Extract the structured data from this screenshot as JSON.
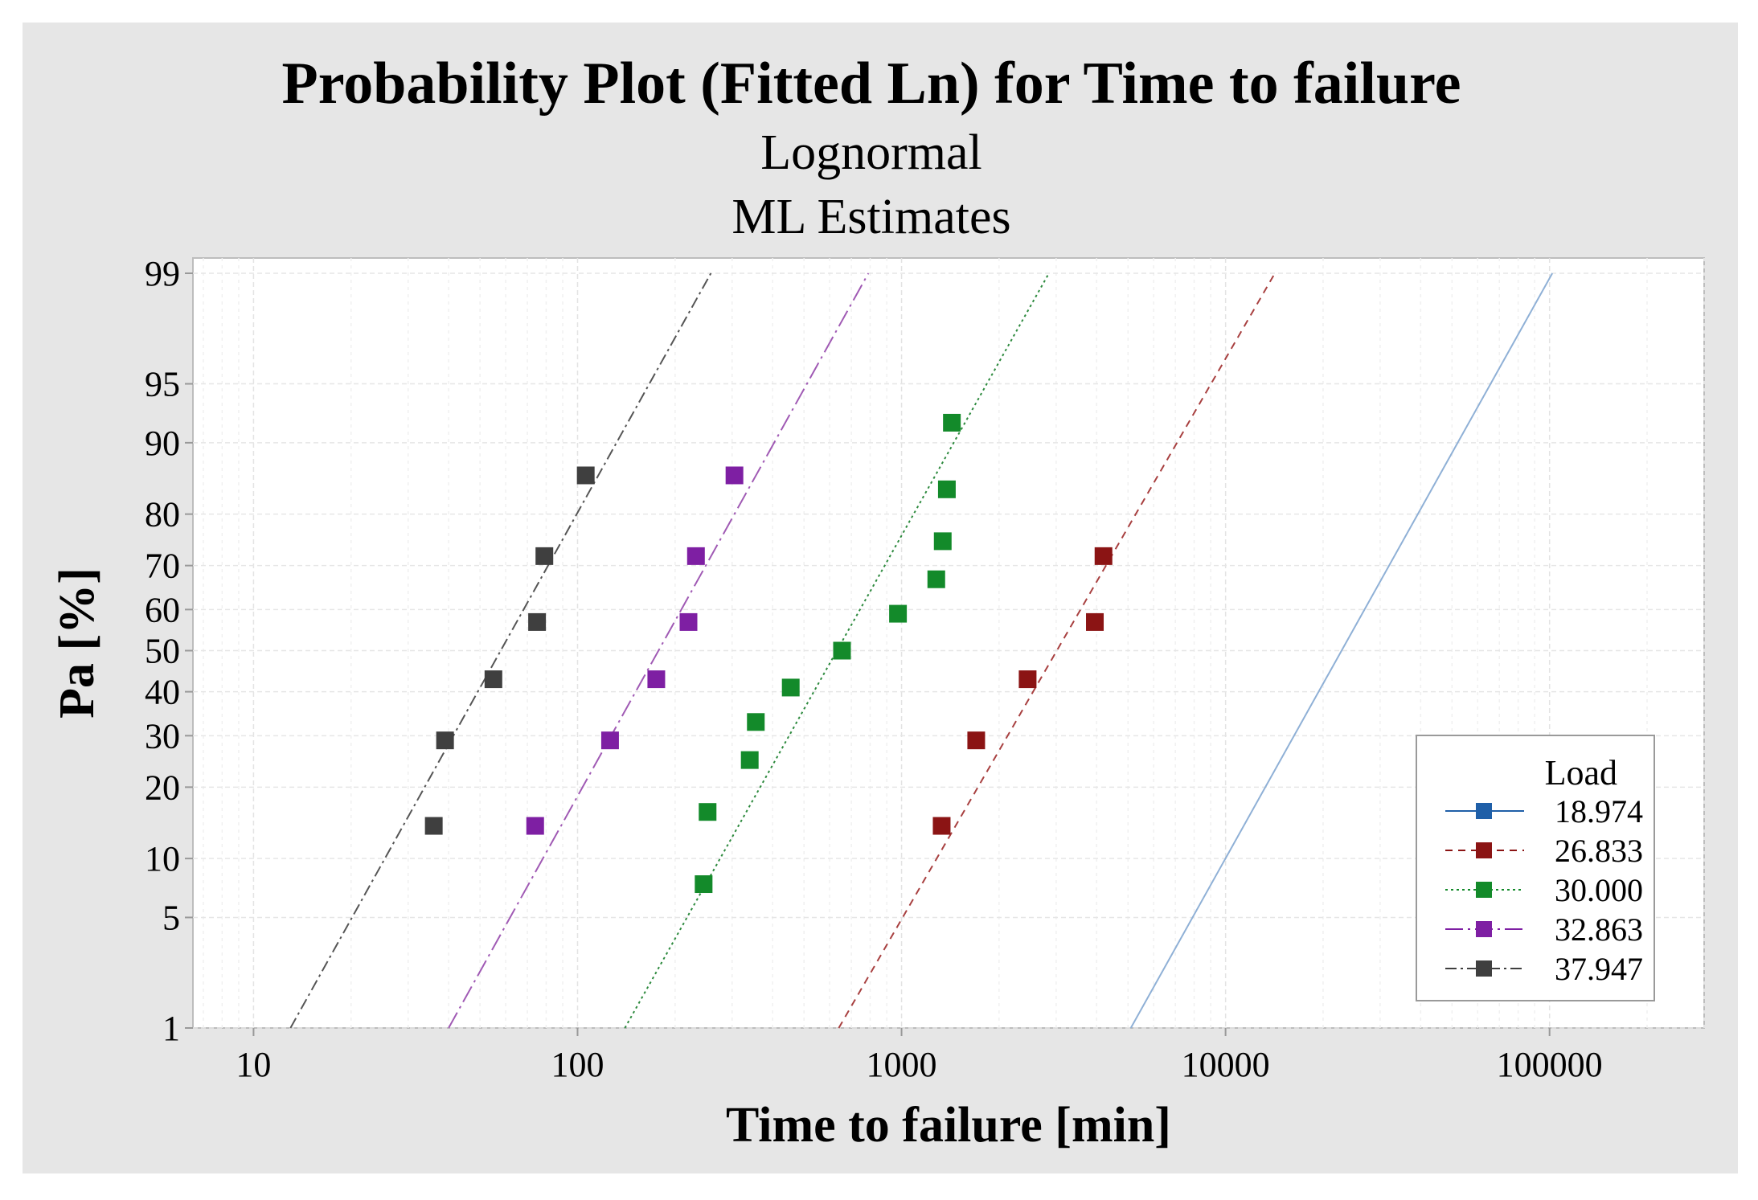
{
  "chart_data": {
    "type": "scatter",
    "title": "Probability Plot (Fitted Ln) for Time to failure",
    "subtitle": [
      "Lognormal",
      "ML Estimates"
    ],
    "xlabel": "Time to failure [min]",
    "ylabel": "Pa [%]",
    "x_scale": "log",
    "y_scale": "lognormal-probability",
    "xlim": [
      6.5,
      300000
    ],
    "ylim": [
      1,
      99
    ],
    "x_ticks": [
      10,
      100,
      1000,
      10000,
      100000
    ],
    "x_tick_labels": [
      "10",
      "100",
      "1000",
      "10000",
      "100000"
    ],
    "y_ticks": [
      1,
      5,
      10,
      20,
      30,
      40,
      50,
      60,
      70,
      80,
      90,
      95,
      99
    ],
    "y_tick_labels": [
      "1",
      "5",
      "10",
      "20",
      "30",
      "40",
      "50",
      "60",
      "70",
      "80",
      "90",
      "95",
      "99"
    ],
    "grid": true,
    "legend": {
      "title": "Load",
      "position": "bottom-right"
    },
    "series": [
      {
        "name": "18.974",
        "color": "#1f5fa8",
        "line_color": "#8fb0d6",
        "dash": "",
        "points": [],
        "fit": [
          [
            5100,
            1
          ],
          [
            102000,
            99
          ]
        ]
      },
      {
        "name": "26.833",
        "color": "#8b1414",
        "line_color": "#a84040",
        "dash": "9,7",
        "points": [
          [
            1330,
            14
          ],
          [
            1700,
            29
          ],
          [
            2450,
            43
          ],
          [
            3950,
            57
          ],
          [
            4200,
            72
          ]
        ],
        "fit": [
          [
            640,
            1
          ],
          [
            14200,
            99
          ]
        ]
      },
      {
        "name": "30.000",
        "color": "#138a2a",
        "line_color": "#2d8a3e",
        "dash": "3,4",
        "points": [
          [
            245,
            7.5
          ],
          [
            252,
            16
          ],
          [
            340,
            25
          ],
          [
            355,
            33
          ],
          [
            455,
            41
          ],
          [
            655,
            50
          ],
          [
            975,
            59
          ],
          [
            1280,
            67
          ],
          [
            1340,
            75
          ],
          [
            1380,
            84
          ],
          [
            1430,
            92
          ]
        ],
        "fit": [
          [
            140,
            1
          ],
          [
            2850,
            99
          ]
        ]
      },
      {
        "name": "32.863",
        "color": "#7e1fa3",
        "line_color": "#a05ab4",
        "dash": "22,6,3,6",
        "points": [
          [
            74,
            14
          ],
          [
            126,
            29
          ],
          [
            175,
            43
          ],
          [
            220,
            57
          ],
          [
            232,
            72
          ],
          [
            305,
            86
          ]
        ],
        "fit": [
          [
            40,
            1
          ],
          [
            790,
            99
          ]
        ]
      },
      {
        "name": "37.947",
        "color": "#3f3f3f",
        "line_color": "#555555",
        "dash": "14,5,3,5",
        "points": [
          [
            36,
            14
          ],
          [
            39,
            29
          ],
          [
            55,
            43
          ],
          [
            75,
            57
          ],
          [
            79,
            72
          ],
          [
            106,
            86
          ]
        ],
        "fit": [
          [
            13,
            1
          ],
          [
            258,
            99
          ]
        ]
      }
    ]
  }
}
